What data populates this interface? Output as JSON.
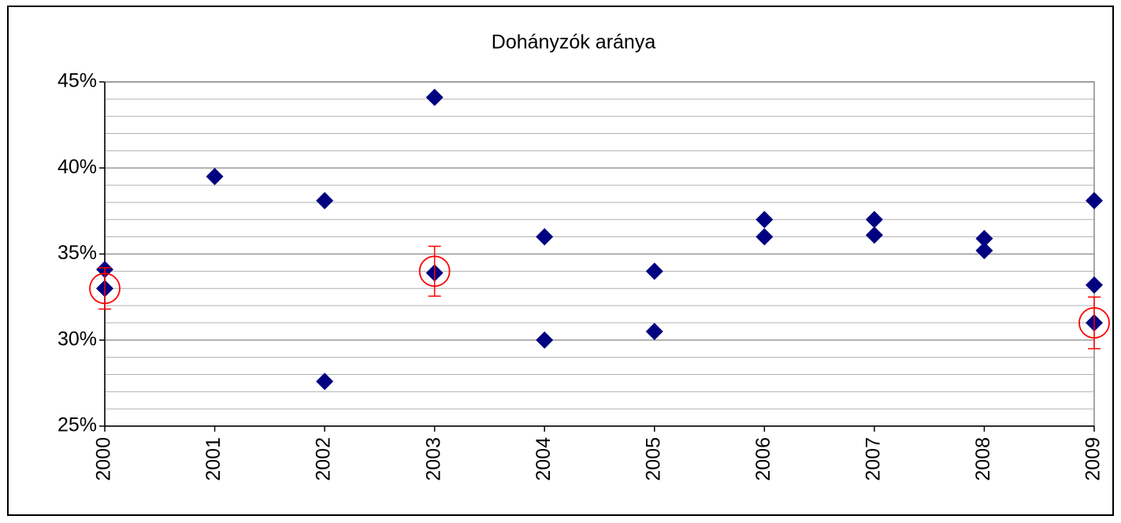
{
  "chart_data": {
    "type": "scatter",
    "title": "Dohányzók aránya",
    "xlim": [
      2000,
      2009
    ],
    "xticks": [
      2000,
      2001,
      2002,
      2003,
      2004,
      2005,
      2006,
      2007,
      2008,
      2009
    ],
    "ylim": [
      25,
      45
    ],
    "yticks": [
      {
        "value": 25,
        "label": "25%"
      },
      {
        "value": 30,
        "label": "30%"
      },
      {
        "value": 35,
        "label": "35%"
      },
      {
        "value": 40,
        "label": "40%"
      },
      {
        "value": 45,
        "label": "45%"
      }
    ],
    "minor_yticks": [
      26,
      27,
      28,
      29,
      31,
      32,
      33,
      34,
      36,
      37,
      38,
      39,
      41,
      42,
      43,
      44
    ],
    "grid": true,
    "series": [
      {
        "color": "#000080",
        "marker": "diamond",
        "x": [
          2000,
          2000,
          2001,
          2002,
          2002,
          2003,
          2003,
          2004,
          2004,
          2005,
          2005,
          2006,
          2006,
          2007,
          2007,
          2008,
          2008,
          2009,
          2009,
          2009
        ],
        "values": [
          34.1,
          33.0,
          39.5,
          38.1,
          27.6,
          44.1,
          33.9,
          36.0,
          30.0,
          34.0,
          30.5,
          37.0,
          36.0,
          37.0,
          36.1,
          35.9,
          35.2,
          38.1,
          33.2,
          31.0
        ]
      },
      {
        "color": "#ff0000",
        "marker": "circle",
        "x": [
          2000,
          2003,
          2009
        ],
        "values": [
          33.0,
          34.0,
          31.0
        ],
        "errors": [
          1.2,
          1.45,
          1.5
        ]
      }
    ]
  }
}
